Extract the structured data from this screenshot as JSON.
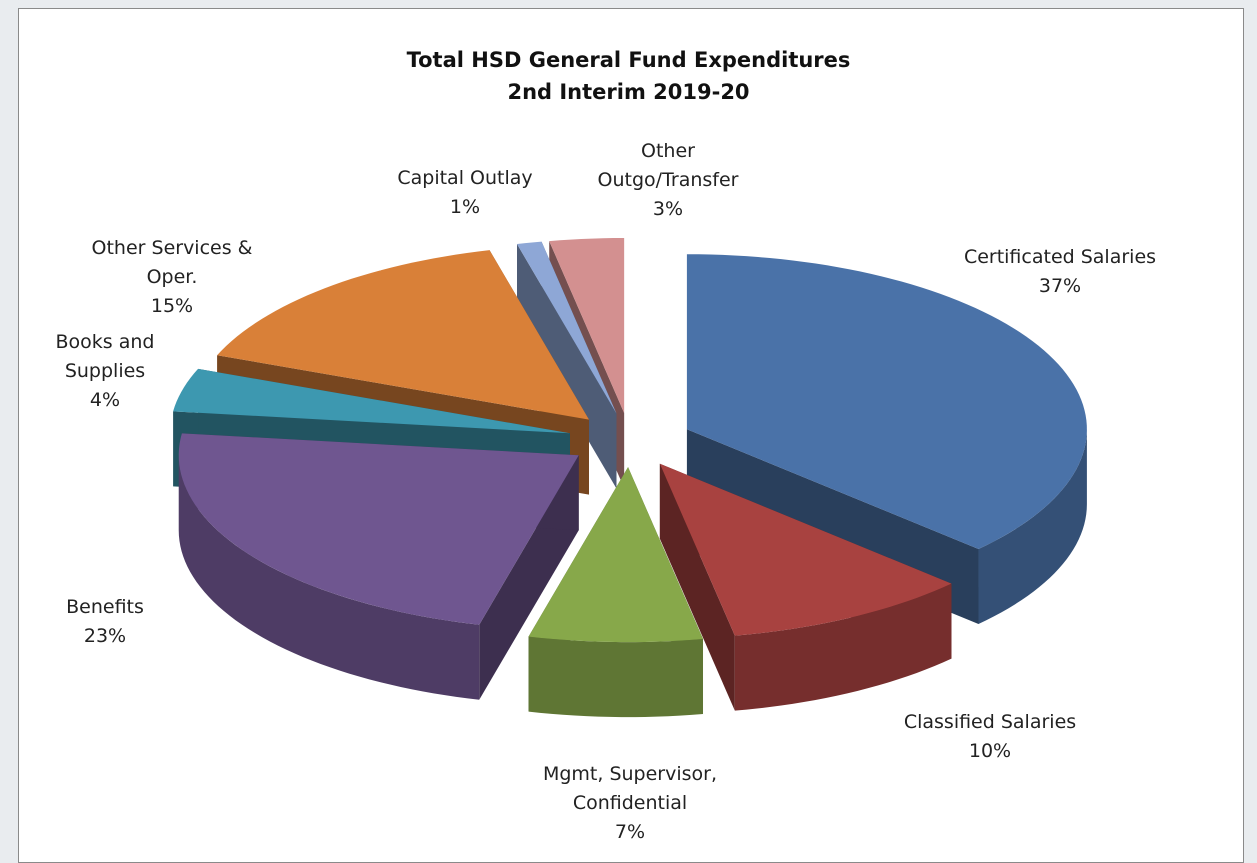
{
  "chart_data": {
    "type": "pie3d",
    "title": "Total HSD General Fund Expenditures",
    "subtitle": "2nd Interim 2019-20",
    "categories": [
      "Certificated Salaries",
      "Classified Salaries",
      "Mgmt, Supervisor, Confidential",
      "Benefits",
      "Books and Supplies",
      "Other Services & Oper.",
      "Capital Outlay",
      "Other Outgo/Transfer"
    ],
    "values": [
      37,
      10,
      7,
      23,
      4,
      15,
      1,
      3
    ],
    "value_labels": [
      "37%",
      "10%",
      "7%",
      "23%",
      "4%",
      "15%",
      "1%",
      "3%"
    ],
    "colors": [
      "#4a72a8",
      "#a84240",
      "#87a84a",
      "#6f5690",
      "#3d98b0",
      "#d98038",
      "#8ea7d6",
      "#d39090"
    ]
  }
}
